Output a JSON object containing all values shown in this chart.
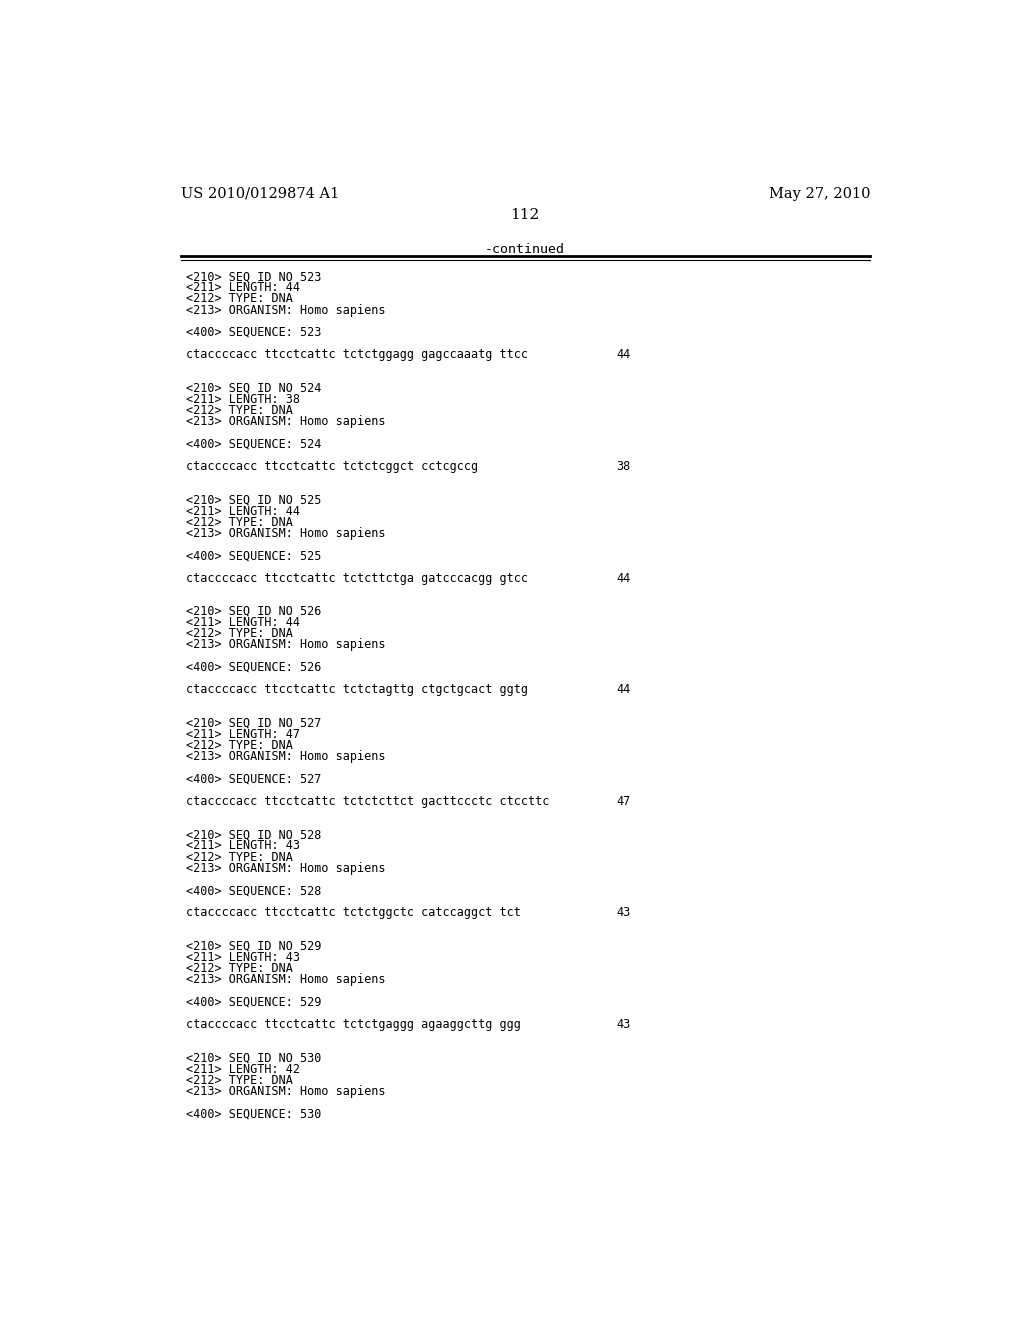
{
  "header_left": "US 2010/0129874 A1",
  "header_right": "May 27, 2010",
  "page_number": "112",
  "continued_label": "-continued",
  "background_color": "#ffffff",
  "text_color": "#000000",
  "font_size_header": 10.5,
  "font_size_body": 8.5,
  "font_size_page": 11,
  "font_size_continued": 9.5,
  "sequences": [
    {
      "seq_id": "523",
      "length": "44",
      "type": "DNA",
      "organism": "Homo sapiens",
      "sequence": "ctaccccacc ttcctcattc tctctggagg gagccaaatg ttcc",
      "seq_length_num": "44"
    },
    {
      "seq_id": "524",
      "length": "38",
      "type": "DNA",
      "organism": "Homo sapiens",
      "sequence": "ctaccccacc ttcctcattc tctctcggct cctcgccg",
      "seq_length_num": "38"
    },
    {
      "seq_id": "525",
      "length": "44",
      "type": "DNA",
      "organism": "Homo sapiens",
      "sequence": "ctaccccacc ttcctcattc tctcttctga gatcccacgg gtcc",
      "seq_length_num": "44"
    },
    {
      "seq_id": "526",
      "length": "44",
      "type": "DNA",
      "organism": "Homo sapiens",
      "sequence": "ctaccccacc ttcctcattc tctctagttg ctgctgcact ggtg",
      "seq_length_num": "44"
    },
    {
      "seq_id": "527",
      "length": "47",
      "type": "DNA",
      "organism": "Homo sapiens",
      "sequence": "ctaccccacc ttcctcattc tctctcttct gacttccctc ctccttc",
      "seq_length_num": "47"
    },
    {
      "seq_id": "528",
      "length": "43",
      "type": "DNA",
      "organism": "Homo sapiens",
      "sequence": "ctaccccacc ttcctcattc tctctggctc catccaggct tct",
      "seq_length_num": "43"
    },
    {
      "seq_id": "529",
      "length": "43",
      "type": "DNA",
      "organism": "Homo sapiens",
      "sequence": "ctaccccacc ttcctcattc tctctgaggg agaaggcttg ggg",
      "seq_length_num": "43"
    },
    {
      "seq_id": "530",
      "length": "42",
      "type": "DNA",
      "organism": "Homo sapiens",
      "sequence": "",
      "seq_length_num": ""
    }
  ]
}
